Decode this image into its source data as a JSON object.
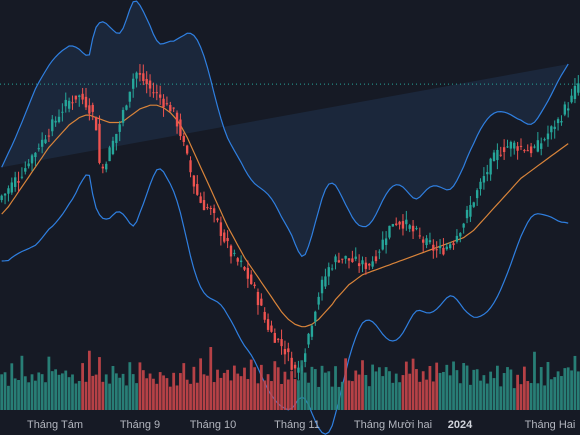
{
  "chart_data": {
    "type": "candlestick",
    "indicators": [
      "bollinger-bands",
      "moving-average",
      "volume"
    ],
    "x_axis_labels": [
      "Tháng Tám",
      "Tháng 9",
      "Tháng 10",
      "Tháng 11",
      "Tháng Mười hai",
      "2024",
      "Tháng Hai"
    ],
    "x_axis_label_bold": [
      false,
      false,
      false,
      false,
      false,
      true,
      false
    ],
    "y_range": [
      0,
      100
    ],
    "grid": false,
    "colors": {
      "background": "#161a25",
      "up": "#26a69a",
      "down": "#ef5350",
      "band_line": "#2f7fe0",
      "band_fill": "#1c2a40",
      "ma_line": "#d9843a",
      "dotted_line": "#26a69a",
      "volume_up": "#2a8a80",
      "volume_down": "#c8464a"
    },
    "close_series": [
      22.0,
      23.0,
      24.5,
      26.5,
      28.5,
      29.5,
      31.5,
      33.5,
      35.5,
      38.0,
      40.0,
      42.0,
      44.0,
      46.5,
      48.5,
      50.5,
      52.5,
      55.0,
      57.0,
      58.5,
      60.0,
      61.0,
      62.0,
      62.0,
      61.0,
      59.5,
      57.5,
      55.0,
      50.0,
      35.0,
      33.0,
      37.0,
      40.0,
      43.5,
      47.0,
      51.0,
      55.5,
      60.5,
      65.5,
      69.5,
      71.5,
      70.0,
      68.5,
      67.0,
      65.0,
      64.0,
      63.0,
      61.5,
      60.0,
      58.5,
      57.5,
      55.0,
      51.5,
      47.0,
      42.0,
      37.0,
      31.5,
      26.5,
      22.5,
      19.5,
      18.0,
      17.0,
      15.5,
      13.0,
      10.5,
      7.5,
      4.5,
      1.5,
      -1.5,
      -3.5,
      -5.0,
      -6.5,
      -8.5,
      -11.0,
      -13.5,
      -16.5,
      -20.0,
      -24.0,
      -28.0,
      -31.0,
      -33.5,
      -35.0,
      -36.5,
      -38.5,
      -40.5,
      -43.0,
      -46.0,
      -48.5,
      -48.0,
      -44.5,
      -39.5,
      -34.0,
      -28.5,
      -23.0,
      -18.0,
      -14.0,
      -10.5,
      -7.5,
      -5.5,
      -4.0,
      -3.0,
      -3.0,
      -3.5,
      -4.0,
      -4.5,
      -5.0,
      -5.5,
      -6.0,
      -6.0,
      -5.5,
      -4.0,
      -2.0,
      0.5,
      3.5,
      6.5,
      9.0,
      10.5,
      11.5,
      11.5,
      11.0,
      10.0,
      9.0,
      7.5,
      6.5,
      5.0,
      3.5,
      2.5,
      1.5,
      0.5,
      0.0,
      0.0,
      0.5,
      1.5,
      3.0,
      4.5,
      6.5,
      9.0,
      11.5,
      14.5,
      17.5,
      20.5,
      23.5,
      26.5,
      29.5,
      32.0,
      34.5,
      37.0,
      39.0,
      40.5,
      41.5,
      42.0,
      42.5,
      42.5,
      42.0,
      41.5,
      41.0,
      40.5,
      40.5,
      41.0,
      42.0,
      43.5,
      45.0,
      47.0,
      48.5,
      50.0,
      52.0,
      54.5,
      57.0,
      59.0,
      61.0,
      64.5,
      67.0
    ],
    "moving_average": [
      14.5,
      16.0,
      17.5,
      19.5,
      21.5,
      23.5,
      25.5,
      27.5,
      29.5,
      31.5,
      33.5,
      35.5,
      37.5,
      39.5,
      41.5,
      43.0,
      44.5,
      46.0,
      47.5,
      49.0,
      50.5,
      51.5,
      52.5,
      53.5,
      54.0,
      54.5,
      54.5,
      54.0,
      53.5,
      53.0,
      52.5,
      52.0,
      51.5,
      51.5,
      51.5,
      51.5,
      52.0,
      53.0,
      54.0,
      55.0,
      56.0,
      57.0,
      57.5,
      58.0,
      58.5,
      58.5,
      58.5,
      58.0,
      57.5,
      56.5,
      55.5,
      54.0,
      52.5,
      50.5,
      48.0,
      45.5,
      42.5,
      39.5,
      36.5,
      33.5,
      30.5,
      27.5,
      24.5,
      21.5,
      18.5,
      15.5,
      12.5,
      9.5,
      7.0,
      4.5,
      2.0,
      -0.5,
      -3.0,
      -5.0,
      -7.0,
      -9.0,
      -11.0,
      -13.0,
      -15.0,
      -17.0,
      -19.0,
      -21.0,
      -23.0,
      -25.0,
      -26.5,
      -28.0,
      -29.0,
      -30.0,
      -30.5,
      -31.0,
      -31.0,
      -30.5,
      -30.0,
      -29.0,
      -28.0,
      -26.5,
      -25.0,
      -23.5,
      -22.0,
      -20.0,
      -18.5,
      -17.0,
      -15.5,
      -14.0,
      -13.0,
      -12.0,
      -11.0,
      -10.0,
      -9.5,
      -9.0,
      -8.5,
      -8.0,
      -7.5,
      -7.0,
      -6.5,
      -6.0,
      -5.5,
      -5.0,
      -4.5,
      -4.0,
      -3.5,
      -3.0,
      -2.5,
      -2.0,
      -1.5,
      -1.0,
      -0.5,
      0.0,
      0.5,
      1.0,
      1.5,
      2.0,
      2.5,
      3.0,
      3.5,
      4.0,
      4.5,
      5.0,
      6.0,
      7.0,
      8.0,
      9.5,
      11.0,
      12.5,
      14.0,
      15.5,
      17.0,
      18.5,
      20.0,
      21.5,
      23.0,
      24.5,
      26.0,
      27.5,
      29.0,
      30.0,
      31.0,
      32.0,
      33.0,
      34.0,
      35.0,
      36.0,
      37.0,
      38.0,
      39.0,
      40.0,
      41.0,
      42.0,
      43.0
    ],
    "volume_levels": [
      0.55,
      0.62,
      0.48,
      0.7,
      0.45,
      0.52,
      0.8,
      0.58,
      0.44,
      0.66,
      0.5,
      0.72,
      0.6,
      0.48,
      0.9,
      0.55,
      0.62,
      0.5,
      0.75,
      0.58,
      0.46,
      0.68,
      0.52,
      0.6,
      0.7,
      0.58,
      1.0,
      0.62,
      0.5,
      0.8,
      0.56,
      0.64,
      0.48,
      0.7,
      0.6,
      0.54,
      0.66,
      0.5,
      0.72,
      0.6,
      0.5,
      0.78,
      0.62,
      0.52,
      0.68,
      0.58,
      0.46,
      0.7
    ]
  }
}
